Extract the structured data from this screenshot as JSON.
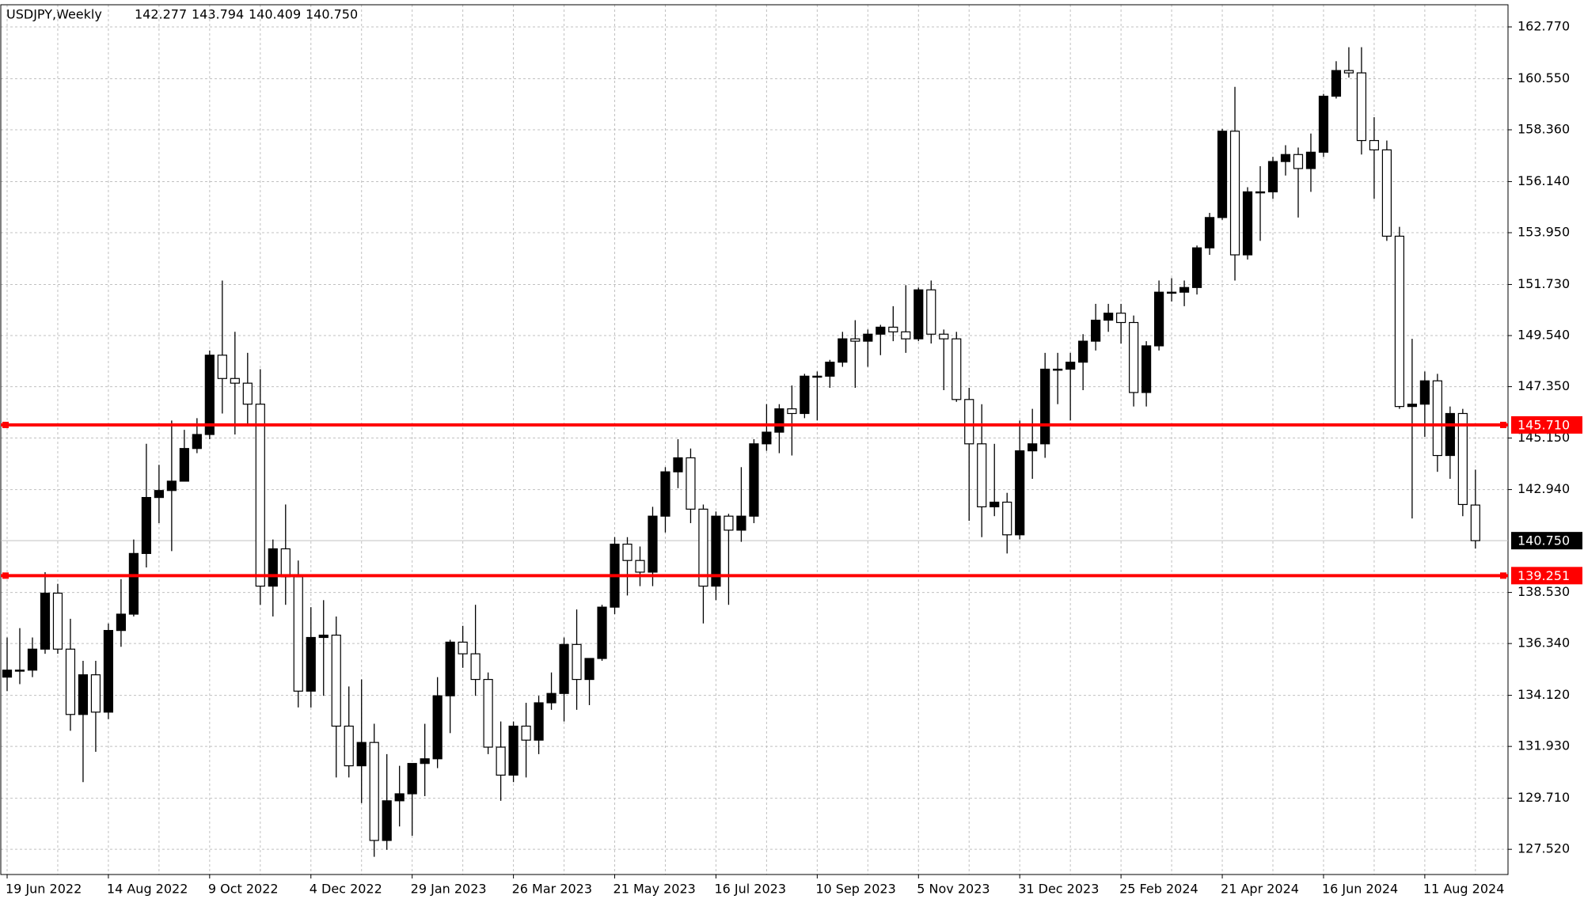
{
  "chart_data": {
    "type": "candlestick",
    "title": "USDJPY,Weekly",
    "last_bar_labels": [
      "142.277",
      "143.794",
      "140.409",
      "140.750"
    ],
    "categories": [
      "19 Jun 2022",
      null,
      null,
      null,
      null,
      null,
      null,
      null,
      "14 Aug 2022",
      null,
      null,
      null,
      null,
      null,
      null,
      null,
      "9 Oct 2022",
      null,
      null,
      null,
      null,
      null,
      null,
      null,
      "4 Dec 2022",
      null,
      null,
      null,
      null,
      null,
      null,
      null,
      "29 Jan 2023",
      null,
      null,
      null,
      null,
      null,
      null,
      null,
      "26 Mar 2023",
      null,
      null,
      null,
      null,
      null,
      null,
      null,
      "21 May 2023",
      null,
      null,
      null,
      null,
      null,
      null,
      null,
      "16 Jul 2023",
      null,
      null,
      null,
      null,
      null,
      null,
      null,
      "10 Sep 2023",
      null,
      null,
      null,
      null,
      null,
      null,
      null,
      "5 Nov 2023",
      null,
      null,
      null,
      null,
      null,
      null,
      null,
      "31 Dec 2023",
      null,
      null,
      null,
      null,
      null,
      null,
      null,
      "25 Feb 2024",
      null,
      null,
      null,
      null,
      null,
      null,
      null,
      "21 Apr 2024",
      null,
      null,
      null,
      null,
      null,
      null,
      null,
      "16 Jun 2024",
      null,
      null,
      null,
      null,
      null,
      null,
      null,
      "11 Aug 2024",
      null,
      null,
      null,
      null
    ],
    "open": [
      134.9,
      135.2,
      135.2,
      136.1,
      138.5,
      136.1,
      133.3,
      135.0,
      133.4,
      136.9,
      137.6,
      140.2,
      142.6,
      142.9,
      143.3,
      144.7,
      145.3,
      148.7,
      147.7,
      147.5,
      146.6,
      138.8,
      140.4,
      139.2,
      134.3,
      136.6,
      136.7,
      132.8,
      131.1,
      132.1,
      127.9,
      129.6,
      129.9,
      131.2,
      131.4,
      134.1,
      136.4,
      135.9,
      134.8,
      131.9,
      130.7,
      132.8,
      132.2,
      133.8,
      134.2,
      136.3,
      134.8,
      135.7,
      137.9,
      140.6,
      139.9,
      139.4,
      141.8,
      143.7,
      144.3,
      142.1,
      138.8,
      141.8,
      141.2,
      141.8,
      144.9,
      145.4,
      146.4,
      146.2,
      147.8,
      147.8,
      148.4,
      149.4,
      149.3,
      149.6,
      149.9,
      149.7,
      149.4,
      151.5,
      149.6,
      149.4,
      146.8,
      144.9,
      142.2,
      142.4,
      141.0,
      144.6,
      144.9,
      148.1,
      148.1,
      148.4,
      149.3,
      150.2,
      150.5,
      150.1,
      147.1,
      149.1,
      151.4,
      151.4,
      151.6,
      153.3,
      154.6,
      158.3,
      153.0,
      155.7,
      155.7,
      157.0,
      157.3,
      156.7,
      157.4,
      159.8,
      160.9,
      160.8,
      157.9,
      157.5,
      153.8,
      146.5,
      146.6,
      147.6,
      144.4,
      146.2,
      142.277
    ],
    "high": [
      136.6,
      137.0,
      136.6,
      139.4,
      138.9,
      137.4,
      135.6,
      135.6,
      137.2,
      139.1,
      140.8,
      144.9,
      144.0,
      145.9,
      145.5,
      146.0,
      148.9,
      151.9,
      149.7,
      148.8,
      148.1,
      140.8,
      142.3,
      139.9,
      137.9,
      138.2,
      137.5,
      134.5,
      134.8,
      132.9,
      131.6,
      131.1,
      131.2,
      132.9,
      134.9,
      136.5,
      137.1,
      138.0,
      135.1,
      133.0,
      133.0,
      133.8,
      134.1,
      135.1,
      136.6,
      137.8,
      135.5,
      138.0,
      140.9,
      140.9,
      140.5,
      142.2,
      143.9,
      145.1,
      144.7,
      142.3,
      142.0,
      141.9,
      143.9,
      145.1,
      146.6,
      146.6,
      147.4,
      147.9,
      148.0,
      148.5,
      149.7,
      150.2,
      149.8,
      150.0,
      150.8,
      151.7,
      151.6,
      151.9,
      149.8,
      149.7,
      147.3,
      146.6,
      144.9,
      142.8,
      145.9,
      146.4,
      148.8,
      148.8,
      148.8,
      149.6,
      150.9,
      150.9,
      150.9,
      150.4,
      149.3,
      151.9,
      152.0,
      151.9,
      153.4,
      154.8,
      158.4,
      160.2,
      155.9,
      156.8,
      157.2,
      157.7,
      157.6,
      158.2,
      159.9,
      161.3,
      161.9,
      161.9,
      158.9,
      157.9,
      154.2,
      149.4,
      148.0,
      147.9,
      146.5,
      146.4,
      143.794
    ],
    "low": [
      134.3,
      134.6,
      134.9,
      135.9,
      135.9,
      132.6,
      130.4,
      131.7,
      133.1,
      136.2,
      137.5,
      139.6,
      141.5,
      140.3,
      143.3,
      144.5,
      145.1,
      146.2,
      145.3,
      145.7,
      138.0,
      137.5,
      138.0,
      133.6,
      133.6,
      134.1,
      130.6,
      130.6,
      129.5,
      127.2,
      127.5,
      128.5,
      128.1,
      129.8,
      131.0,
      132.5,
      135.3,
      134.1,
      131.6,
      129.6,
      130.4,
      130.6,
      131.6,
      133.5,
      133.0,
      133.5,
      133.7,
      135.6,
      137.6,
      138.4,
      138.8,
      138.8,
      141.1,
      143.0,
      141.5,
      137.2,
      138.2,
      138.0,
      140.7,
      141.5,
      144.6,
      144.5,
      144.4,
      146.0,
      145.9,
      147.3,
      148.2,
      147.3,
      148.2,
      148.7,
      149.3,
      148.8,
      149.3,
      149.2,
      147.2,
      146.7,
      141.6,
      140.9,
      141.8,
      140.2,
      140.8,
      143.4,
      144.3,
      146.6,
      145.9,
      147.2,
      148.9,
      149.7,
      149.2,
      146.5,
      146.5,
      148.9,
      151.0,
      150.8,
      151.3,
      153.0,
      154.5,
      151.9,
      152.8,
      153.6,
      155.4,
      156.4,
      154.6,
      155.7,
      157.2,
      159.7,
      160.6,
      157.3,
      155.4,
      153.6,
      146.4,
      141.7,
      145.2,
      143.7,
      143.4,
      141.8,
      140.409
    ],
    "close": [
      135.2,
      135.2,
      136.1,
      138.5,
      136.1,
      133.3,
      135.0,
      133.4,
      136.9,
      137.6,
      140.2,
      142.6,
      142.9,
      143.3,
      144.7,
      145.3,
      148.7,
      147.7,
      147.5,
      146.6,
      138.8,
      140.4,
      139.2,
      134.3,
      136.6,
      136.7,
      132.8,
      131.1,
      132.1,
      127.9,
      129.6,
      129.9,
      131.2,
      131.4,
      134.1,
      136.4,
      135.9,
      134.8,
      131.9,
      130.7,
      132.8,
      132.2,
      133.8,
      134.2,
      136.3,
      134.8,
      135.7,
      137.9,
      140.6,
      139.9,
      139.4,
      141.8,
      143.7,
      144.3,
      142.1,
      138.8,
      141.8,
      141.2,
      141.8,
      144.9,
      145.4,
      146.4,
      146.2,
      147.8,
      147.8,
      148.4,
      149.4,
      149.3,
      149.6,
      149.9,
      149.7,
      149.4,
      151.5,
      149.6,
      149.4,
      146.8,
      144.9,
      142.2,
      142.4,
      141.0,
      144.6,
      144.9,
      148.1,
      148.1,
      148.4,
      149.3,
      150.2,
      150.5,
      150.1,
      147.1,
      149.1,
      151.4,
      151.4,
      151.6,
      153.3,
      154.6,
      158.3,
      153.0,
      155.7,
      155.7,
      157.0,
      157.3,
      156.7,
      157.4,
      159.8,
      160.9,
      160.8,
      157.9,
      157.5,
      153.8,
      146.5,
      146.6,
      147.6,
      144.4,
      146.2,
      142.3,
      140.75
    ],
    "up_color": "#000000",
    "down_color": "#ffffff",
    "wick_color": "#000000",
    "ylim": [
      126.44,
      163.72
    ],
    "yticks": [
      {
        "value": 127.52,
        "label": "127.520"
      },
      {
        "value": 129.71,
        "label": "129.710"
      },
      {
        "value": 131.93,
        "label": "131.930"
      },
      {
        "value": 134.12,
        "label": "134.120"
      },
      {
        "value": 136.34,
        "label": "136.340"
      },
      {
        "value": 138.53,
        "label": "138.530"
      },
      {
        "value": 142.94,
        "label": "142.940"
      },
      {
        "value": 145.15,
        "label": "145.150"
      },
      {
        "value": 147.35,
        "label": "147.350"
      },
      {
        "value": 149.54,
        "label": "149.540"
      },
      {
        "value": 151.73,
        "label": "151.730"
      },
      {
        "value": 153.95,
        "label": "153.950"
      },
      {
        "value": 156.14,
        "label": "156.140"
      },
      {
        "value": 158.36,
        "label": "158.360"
      },
      {
        "value": 160.55,
        "label": "160.550"
      },
      {
        "value": 162.77,
        "label": "162.770"
      }
    ],
    "grid": true,
    "hlines": [
      {
        "value": 145.71,
        "label": "145.710",
        "color": "#ff0000"
      },
      {
        "value": 139.251,
        "label": "139.251",
        "color": "#ff0000"
      }
    ],
    "current_price": {
      "value": 140.75,
      "label": "140.750",
      "color": "#000000"
    }
  }
}
